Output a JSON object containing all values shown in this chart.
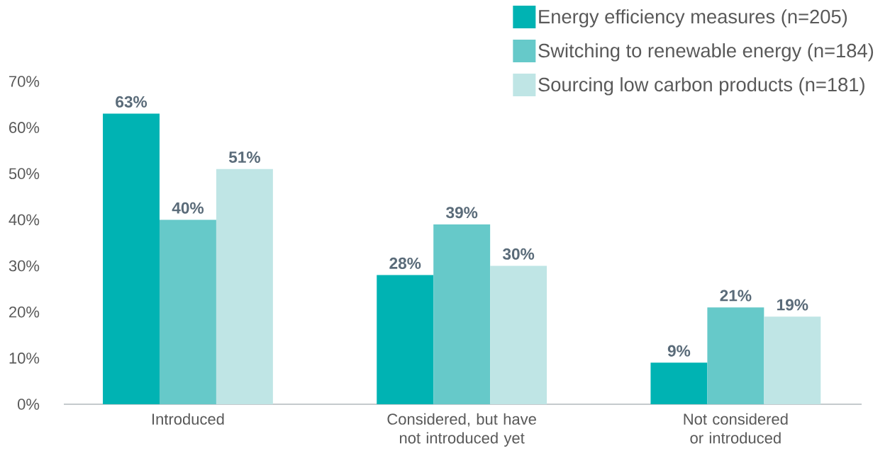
{
  "chart_data": {
    "type": "bar",
    "categories": [
      "Introduced",
      "Considered, but have not introduced yet",
      "Not considered or introduced"
    ],
    "series": [
      {
        "name": "Energy efficiency measures (n=205)",
        "color": "#00b3b3",
        "values": [
          63,
          28,
          9
        ],
        "value_labels": [
          "63%",
          "28%",
          "9%"
        ]
      },
      {
        "name": "Switching to renewable energy (n=184)",
        "color": "#66c9c9",
        "values": [
          40,
          39,
          21
        ],
        "value_labels": [
          "40%",
          "39%",
          "21%"
        ]
      },
      {
        "name": "Sourcing low carbon products (n=181)",
        "color": "#bfe5e5",
        "values": [
          51,
          30,
          19
        ],
        "value_labels": [
          "51%",
          "30%",
          "19%"
        ]
      }
    ],
    "ylim": [
      0,
      70
    ],
    "yticks": [
      {
        "value": 0,
        "label": "0%"
      },
      {
        "value": 10,
        "label": "10%"
      },
      {
        "value": 20,
        "label": "20%"
      },
      {
        "value": 30,
        "label": "30%"
      },
      {
        "value": 40,
        "label": "40%"
      },
      {
        "value": 50,
        "label": "50%"
      },
      {
        "value": 60,
        "label": "60%"
      },
      {
        "value": 70,
        "label": "70%"
      }
    ],
    "legend": "top right"
  }
}
